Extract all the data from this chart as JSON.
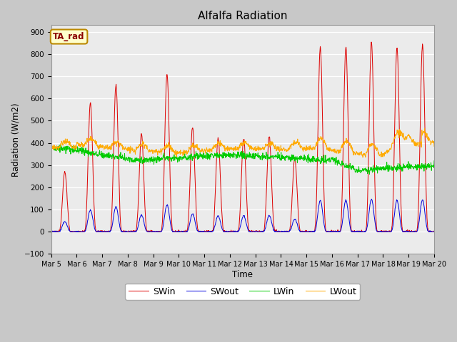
{
  "title": "Alfalfa Radiation",
  "ylabel": "Radiation (W/m2)",
  "xlabel": "Time",
  "ylim": [
    -100,
    930
  ],
  "yticks": [
    -100,
    0,
    100,
    200,
    300,
    400,
    500,
    600,
    700,
    800,
    900
  ],
  "legend_label": "TA_rad",
  "series_colors": {
    "SWin": "#dd0000",
    "SWout": "#0000dd",
    "LWin": "#00cc00",
    "LWout": "#ffaa00"
  },
  "n_days": 15,
  "pts_per_day": 96,
  "start_day": 5,
  "fig_facecolor": "#c8c8c8",
  "ax_facecolor": "#ebebeb"
}
